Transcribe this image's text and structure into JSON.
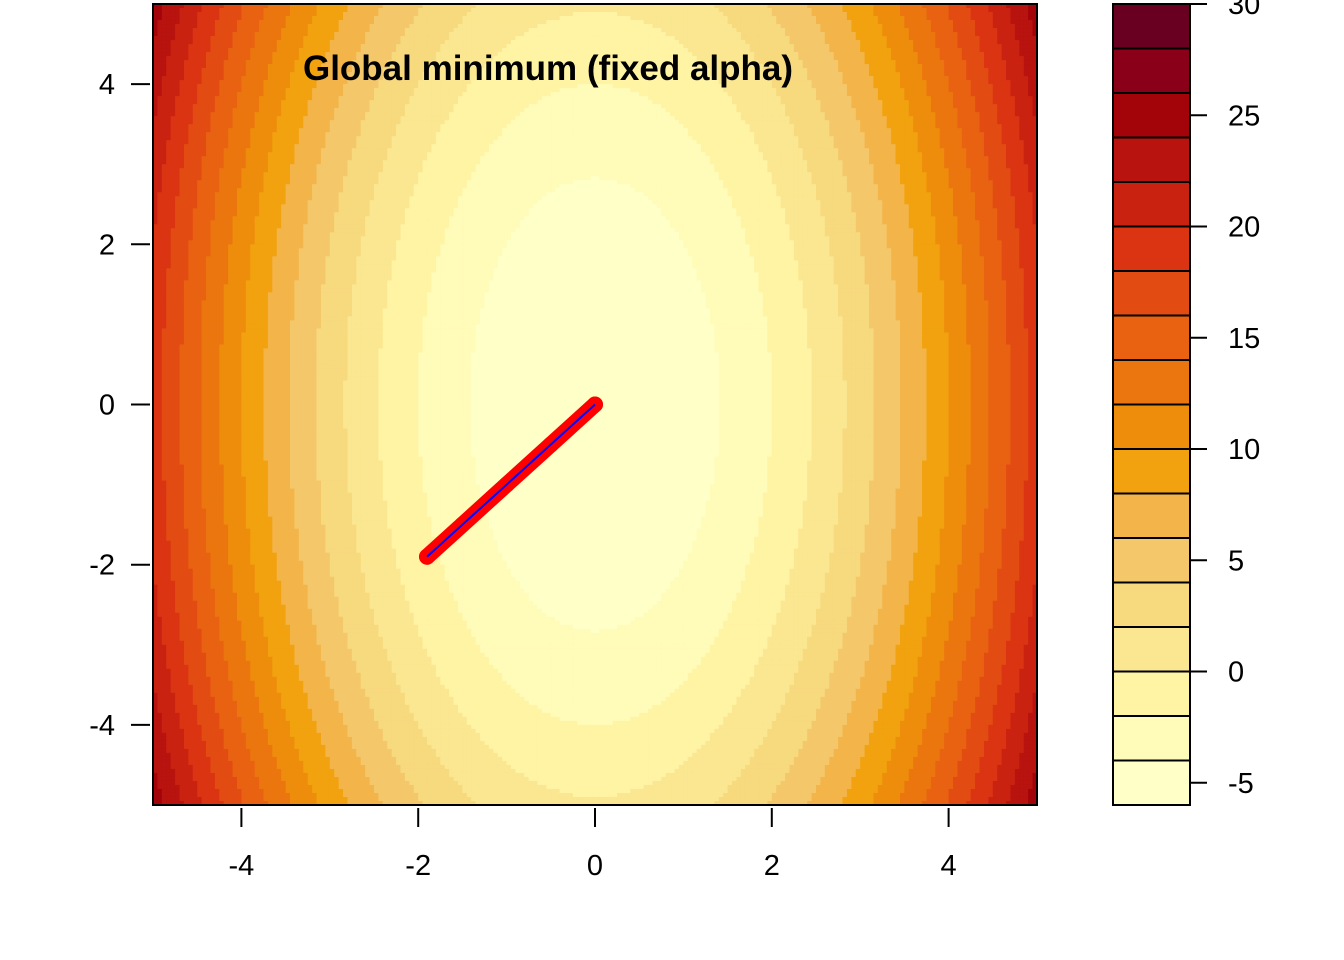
{
  "chart_data": {
    "type": "heatmap",
    "subtype": "filled-contour",
    "title": "Global minimum (fixed alpha)",
    "xlabel": "",
    "ylabel": "",
    "xlim": [
      -5,
      5
    ],
    "ylim": [
      -5,
      5
    ],
    "x_ticks": [
      -4,
      -2,
      0,
      2,
      4
    ],
    "y_ticks": [
      -4,
      -2,
      0,
      2,
      4
    ],
    "surface": {
      "description_formula": "z = x^2 + 0.25*y^2 - 6",
      "x_coefficient": 1,
      "y_coefficient": 0.25,
      "offset": -6,
      "minimum": [
        0,
        0
      ]
    },
    "levels": [
      -6,
      -4,
      -2,
      0,
      2,
      4,
      6,
      8,
      10,
      12,
      14,
      16,
      18,
      20,
      22,
      24,
      26,
      28,
      30
    ],
    "level_colors": [
      "#FFFFC8",
      "#FFFBB8",
      "#FFF3A4",
      "#FBE791",
      "#F7D97E",
      "#F4C86A",
      "#F3B54A",
      "#F1A20E",
      "#EE8C0C",
      "#EB760F",
      "#E86212",
      "#E24C13",
      "#DA3413",
      "#CA2211",
      "#B8130E",
      "#A2040A",
      "#890018",
      "#6A0021"
    ],
    "legend": {
      "placement": "right",
      "tick_values": [
        -5,
        0,
        5,
        10,
        15,
        20,
        25,
        30
      ],
      "tick_labels": [
        "-5",
        "0",
        "5",
        "10",
        "15",
        "20",
        "25",
        "30"
      ]
    },
    "path": {
      "points": [
        [
          -1.9,
          -1.9
        ],
        [
          -1.5,
          -1.5
        ],
        [
          -1.0,
          -1.0
        ],
        [
          -0.5,
          -0.5
        ],
        [
          0.0,
          0.0
        ]
      ],
      "marker_color": "#FF0000",
      "line_color": "#0000FF"
    }
  }
}
